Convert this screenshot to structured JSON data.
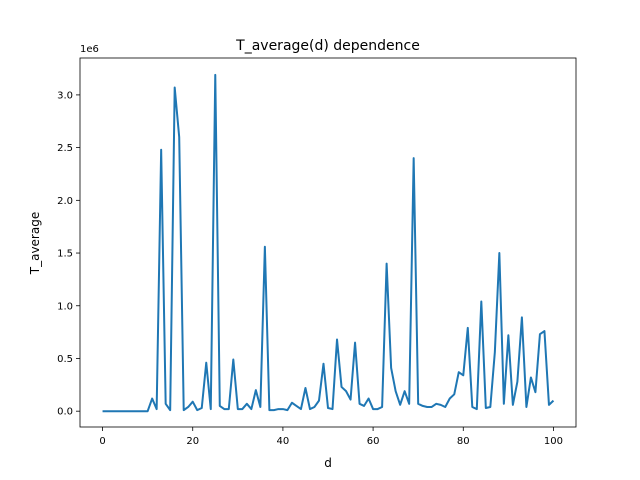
{
  "chart_data": {
    "type": "line",
    "title": "T_average(d) dependence",
    "xlabel": "d",
    "ylabel": "T_average",
    "y_offset_text": "1e6",
    "xlim": [
      -5,
      105
    ],
    "ylim": [
      -150000,
      3350000
    ],
    "x_ticks": [
      0,
      20,
      40,
      60,
      80,
      100
    ],
    "x_tick_labels": [
      "0",
      "20",
      "40",
      "60",
      "80",
      "100"
    ],
    "y_ticks": [
      0,
      500000,
      1000000,
      1500000,
      2000000,
      2500000,
      3000000
    ],
    "y_tick_labels": [
      "0.0",
      "0.5",
      "1.0",
      "1.5",
      "2.0",
      "2.5",
      "3.0"
    ],
    "grid": false,
    "line_color": "#1f77b4",
    "series": [
      {
        "x": [
          0,
          1,
          2,
          3,
          4,
          5,
          6,
          7,
          8,
          9,
          10,
          11,
          12,
          13,
          14,
          15,
          16,
          17,
          18,
          19,
          20,
          21,
          22,
          23,
          24,
          25,
          26,
          27,
          28,
          29,
          30,
          31,
          32,
          33,
          34,
          35,
          36,
          37,
          38,
          39,
          40,
          41,
          42,
          43,
          44,
          45,
          46,
          47,
          48,
          49,
          50,
          51,
          52,
          53,
          54,
          55,
          56,
          57,
          58,
          59,
          60,
          61,
          62,
          63,
          64,
          65,
          66,
          67,
          68,
          69,
          70,
          71,
          72,
          73,
          74,
          75,
          76,
          77,
          78,
          79,
          80,
          81,
          82,
          83,
          84,
          85,
          86,
          87,
          88,
          89,
          90,
          91,
          92,
          93,
          94,
          95,
          96,
          97,
          98,
          99,
          100
        ],
        "y": [
          0,
          0,
          0,
          0,
          0,
          0,
          0,
          0,
          0,
          0,
          0,
          120000,
          20000,
          2480000,
          70000,
          10000,
          3070000,
          2600000,
          10000,
          40000,
          90000,
          10000,
          30000,
          460000,
          20000,
          3190000,
          50000,
          20000,
          20000,
          490000,
          20000,
          20000,
          70000,
          20000,
          200000,
          40000,
          1560000,
          10000,
          10000,
          20000,
          20000,
          10000,
          80000,
          50000,
          20000,
          220000,
          20000,
          40000,
          100000,
          450000,
          30000,
          20000,
          680000,
          230000,
          190000,
          110000,
          650000,
          70000,
          50000,
          120000,
          20000,
          20000,
          40000,
          1400000,
          410000,
          190000,
          60000,
          190000,
          70000,
          2400000,
          70000,
          50000,
          40000,
          40000,
          70000,
          60000,
          40000,
          120000,
          160000,
          370000,
          340000,
          790000,
          40000,
          20000,
          1040000,
          30000,
          40000,
          560000,
          1500000,
          70000,
          720000,
          60000,
          280000,
          890000,
          40000,
          320000,
          180000,
          730000,
          760000,
          60000,
          100000
        ]
      }
    ]
  }
}
